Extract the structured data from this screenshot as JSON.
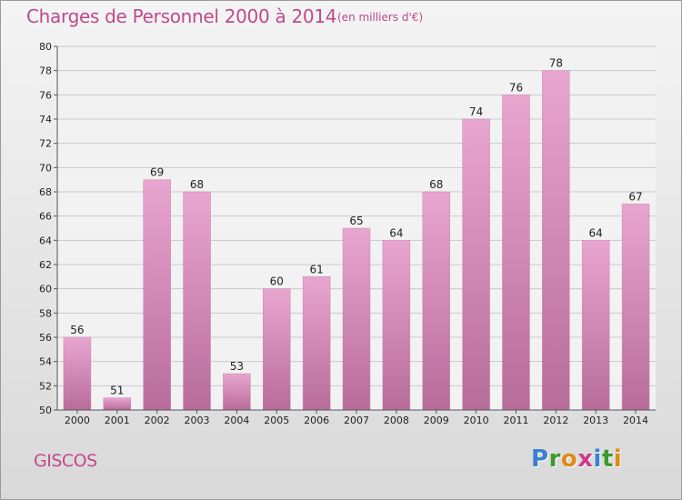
{
  "title": "Charges de Personnel 2000 à 2014",
  "subtitle": "(en milliers d'€)",
  "commune": "GISCOS",
  "logo": {
    "letters": [
      "P",
      "r",
      "o",
      "x",
      "i",
      "t",
      "i"
    ],
    "colors": [
      "#3a7fd0",
      "#3a9a2a",
      "#e08a1a",
      "#d03a8a",
      "#3a7fd0",
      "#3a9a2a",
      "#e08a1a"
    ]
  },
  "colors": {
    "accent": "#c04a8a",
    "bar_top": "#e8a6cf",
    "bar_bottom": "#b86c9a"
  },
  "chart_data": {
    "type": "bar",
    "categories": [
      "2000",
      "2001",
      "2002",
      "2003",
      "2004",
      "2005",
      "2006",
      "2007",
      "2008",
      "2009",
      "2010",
      "2011",
      "2012",
      "2013",
      "2014"
    ],
    "values": [
      56,
      51,
      69,
      68,
      53,
      60,
      61,
      65,
      64,
      68,
      74,
      76,
      78,
      64,
      67
    ],
    "ylim": [
      50,
      80
    ],
    "yticks": [
      50,
      52,
      54,
      56,
      58,
      60,
      62,
      64,
      66,
      68,
      70,
      72,
      74,
      76,
      78,
      80
    ],
    "grid": true,
    "legend": "none"
  }
}
